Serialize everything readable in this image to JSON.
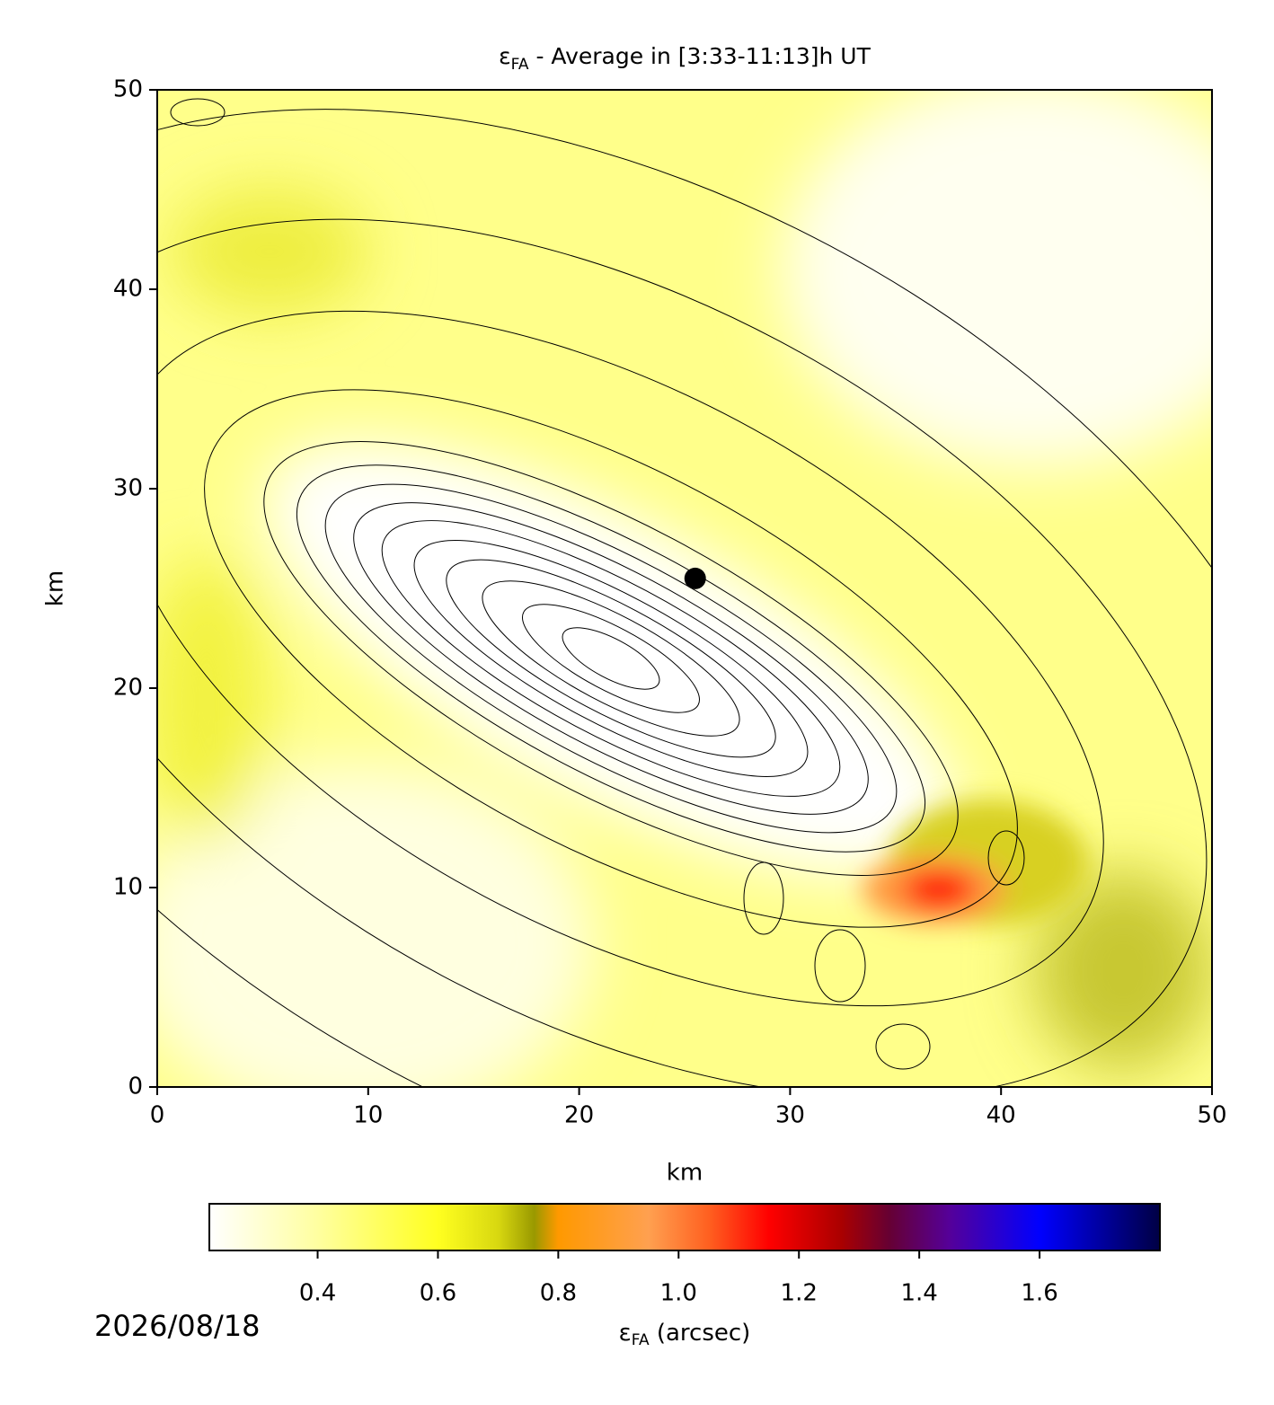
{
  "chart_data": {
    "type": "heatmap",
    "title": {
      "symbol": "ε",
      "subscript": "FA",
      "text": " - Average in [3:33-11:13]h UT"
    },
    "x_label": "km",
    "y_label": "km",
    "xlim": [
      0,
      50
    ],
    "ylim": [
      0,
      50
    ],
    "xticks": [
      0,
      10,
      20,
      30,
      40,
      50
    ],
    "yticks": [
      0,
      10,
      20,
      30,
      40,
      50
    ],
    "points": [
      {
        "x": 25.5,
        "y": 25.5,
        "color": "#000000"
      }
    ],
    "colorbar": {
      "label": {
        "symbol": "ε",
        "subscript": "FA",
        "text": " (arcsec)"
      },
      "clim": [
        0.22,
        1.8
      ],
      "ticks": [
        0.4,
        0.6,
        0.8,
        {
          "value": 1,
          "label": "1.0"
        },
        1.2,
        1.4,
        1.6
      ],
      "colormap": [
        {
          "value": 0.22,
          "color": "#ffffff"
        },
        {
          "value": 0.4,
          "color": "#ffffa0"
        },
        {
          "value": 0.6,
          "color": "#ffff20"
        },
        {
          "value": 0.7,
          "color": "#d8d810"
        },
        {
          "value": 0.76,
          "color": "#999900"
        },
        {
          "value": 0.8,
          "color": "#ff9900"
        },
        {
          "value": 0.95,
          "color": "#ffa050"
        },
        {
          "value": 1.05,
          "color": "#ff6020"
        },
        {
          "value": 1.15,
          "color": "#ff0000"
        },
        {
          "value": 1.27,
          "color": "#aa0000"
        },
        {
          "value": 1.35,
          "color": "#660033"
        },
        {
          "value": 1.45,
          "color": "#550099"
        },
        {
          "value": 1.6,
          "color": "#0000ff"
        },
        {
          "value": 1.8,
          "color": "#000044"
        }
      ]
    },
    "annotation": "2026/08/18"
  }
}
